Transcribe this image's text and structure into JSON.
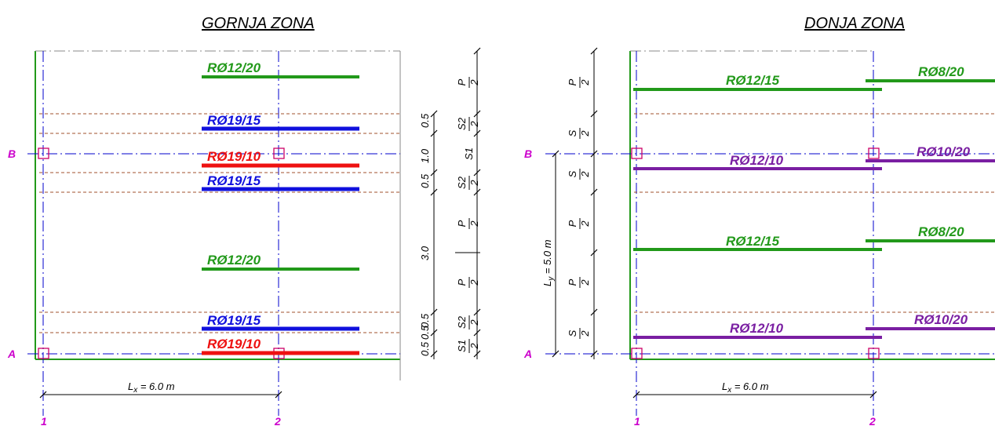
{
  "colors": {
    "green": "#22991a",
    "blue": "#1010dd",
    "red": "#ee1111",
    "purple": "#7a1fa2",
    "magenta": "#cc00cc",
    "axis_blue": "#0000cc",
    "brown": "#a0522d"
  },
  "left": {
    "title": "GORNJA ZONA",
    "rebars": [
      {
        "label": "RØ12/20",
        "color": "green"
      },
      {
        "label": "RØ19/15",
        "color": "blue"
      },
      {
        "label": "RØ19/10",
        "color": "red"
      },
      {
        "label": "RØ19/15",
        "color": "blue"
      },
      {
        "label": "RØ12/20",
        "color": "green"
      },
      {
        "label": "RØ19/15",
        "color": "blue"
      },
      {
        "label": "RØ19/10",
        "color": "red"
      }
    ],
    "dims": [
      "0.5",
      "1.0",
      "0.5",
      "3.0",
      "0.5",
      "0.5",
      "0.5"
    ],
    "strips": [
      {
        "num": "P",
        "den": "2"
      },
      {
        "num": "S2",
        "den": "2"
      },
      {
        "num": "S1",
        "den": ""
      },
      {
        "num": "S2",
        "den": "2"
      },
      {
        "num": "P",
        "den": "2"
      },
      {
        "num": "P",
        "den": "2"
      },
      {
        "num": "S2",
        "den": "2"
      },
      {
        "num": "S1",
        "den": "2"
      }
    ],
    "lx": "Lx = 6.0 m",
    "lx_main": "L",
    "lx_sub": "x",
    "lx_rest": " = 6.0 m",
    "axis_rows": [
      "B",
      "A"
    ],
    "axis_cols": [
      "1",
      "2"
    ]
  },
  "right": {
    "title": "DONJA ZONA",
    "rebars": [
      {
        "label": "RØ12/15",
        "color": "green"
      },
      {
        "label": "RØ8/20",
        "color": "green"
      },
      {
        "label": "RØ12/10",
        "color": "purple"
      },
      {
        "label": "RØ10/20",
        "color": "purple"
      },
      {
        "label": "RØ12/15",
        "color": "green"
      },
      {
        "label": "RØ8/20",
        "color": "green"
      },
      {
        "label": "RØ12/10",
        "color": "purple"
      },
      {
        "label": "RØ10/20",
        "color": "purple"
      }
    ],
    "strips": [
      {
        "num": "P",
        "den": "2"
      },
      {
        "num": "S",
        "den": "2"
      },
      {
        "num": "S",
        "den": "2"
      },
      {
        "num": "P",
        "den": "2"
      },
      {
        "num": "P",
        "den": "2"
      },
      {
        "num": "S",
        "den": "2"
      }
    ],
    "ly_main": "L",
    "ly_sub": "y",
    "ly_rest": " = 5.0 m",
    "lx_main": "L",
    "lx_sub": "x",
    "lx_rest": " = 6.0 m",
    "axis_rows": [
      "B",
      "A"
    ],
    "axis_cols": [
      "1",
      "2"
    ]
  }
}
